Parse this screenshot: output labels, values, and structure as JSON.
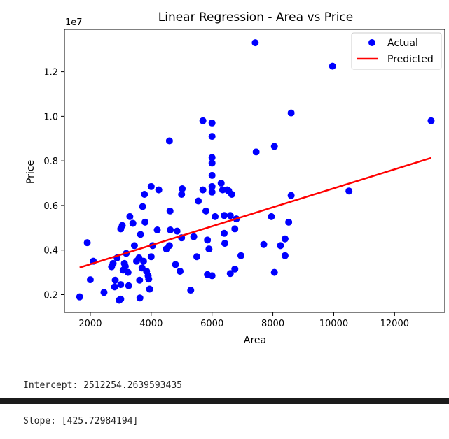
{
  "chart_data": {
    "type": "scatter",
    "title": "Linear Regression - Area vs Price",
    "xlabel": "Area",
    "ylabel": "Price",
    "y_offset_label": "1e7",
    "xlim": [
      1150,
      13650
    ],
    "ylim": [
      1200000,
      13900000
    ],
    "x_ticks": [
      2000,
      4000,
      6000,
      8000,
      10000,
      12000
    ],
    "x_tick_labels": [
      "2000",
      "4000",
      "6000",
      "8000",
      "10000",
      "12000"
    ],
    "y_ticks": [
      2000000,
      4000000,
      6000000,
      8000000,
      10000000,
      12000000
    ],
    "y_tick_labels": [
      "0.2",
      "0.4",
      "0.6",
      "0.8",
      "1.0",
      "1.2"
    ],
    "grid": false,
    "legend_position": "top-right",
    "series": [
      {
        "name": "Actual",
        "kind": "scatter",
        "color": "#0000ff",
        "points": [
          [
            1650,
            1900000
          ],
          [
            1900,
            4330000
          ],
          [
            2100,
            3500000
          ],
          [
            2000,
            2670000
          ],
          [
            2450,
            2100000
          ],
          [
            2700,
            3250000
          ],
          [
            2750,
            3400000
          ],
          [
            2800,
            2350000
          ],
          [
            2820,
            2650000
          ],
          [
            2880,
            3650000
          ],
          [
            2950,
            1750000
          ],
          [
            3000,
            1800000
          ],
          [
            3000,
            2450000
          ],
          [
            3000,
            4950000
          ],
          [
            3050,
            5100000
          ],
          [
            3080,
            3100000
          ],
          [
            3120,
            3400000
          ],
          [
            3150,
            3270000
          ],
          [
            3180,
            3850000
          ],
          [
            3240,
            3000000
          ],
          [
            3260,
            2400000
          ],
          [
            3300,
            5500000
          ],
          [
            3400,
            5200000
          ],
          [
            3450,
            4200000
          ],
          [
            3520,
            3500000
          ],
          [
            3600,
            3650000
          ],
          [
            3620,
            2650000
          ],
          [
            3630,
            1850000
          ],
          [
            3650,
            4700000
          ],
          [
            3700,
            3200000
          ],
          [
            3720,
            5950000
          ],
          [
            3750,
            3500000
          ],
          [
            3780,
            6500000
          ],
          [
            3800,
            5250000
          ],
          [
            3850,
            3050000
          ],
          [
            3900,
            2850000
          ],
          [
            3920,
            2700000
          ],
          [
            3950,
            2250000
          ],
          [
            4000,
            6850000
          ],
          [
            4000,
            3700000
          ],
          [
            4050,
            4200000
          ],
          [
            4200,
            4900000
          ],
          [
            4250,
            6700000
          ],
          [
            4500,
            4050000
          ],
          [
            4600,
            8900000
          ],
          [
            4600,
            4200000
          ],
          [
            4620,
            5750000
          ],
          [
            4630,
            4900000
          ],
          [
            4800,
            3350000
          ],
          [
            4850,
            4850000
          ],
          [
            4950,
            3050000
          ],
          [
            5000,
            6500000
          ],
          [
            5000,
            4550000
          ],
          [
            5020,
            6750000
          ],
          [
            5300,
            2200000
          ],
          [
            5400,
            4600000
          ],
          [
            5500,
            3700000
          ],
          [
            5550,
            6200000
          ],
          [
            5700,
            6700000
          ],
          [
            5700,
            9800000
          ],
          [
            5800,
            5750000
          ],
          [
            5850,
            4450000
          ],
          [
            5850,
            2900000
          ],
          [
            5900,
            4050000
          ],
          [
            6000,
            2850000
          ],
          [
            6000,
            9700000
          ],
          [
            6000,
            9100000
          ],
          [
            6000,
            8150000
          ],
          [
            6000,
            7900000
          ],
          [
            6000,
            7350000
          ],
          [
            6000,
            6850000
          ],
          [
            6000,
            6600000
          ],
          [
            6100,
            5500000
          ],
          [
            6300,
            7000000
          ],
          [
            6350,
            6700000
          ],
          [
            6400,
            5550000
          ],
          [
            6400,
            4750000
          ],
          [
            6420,
            4300000
          ],
          [
            6500,
            6700000
          ],
          [
            6550,
            6650000
          ],
          [
            6600,
            5550000
          ],
          [
            6650,
            6500000
          ],
          [
            6600,
            2950000
          ],
          [
            6750,
            3150000
          ],
          [
            6750,
            4950000
          ],
          [
            6800,
            5400000
          ],
          [
            6950,
            3750000
          ],
          [
            7420,
            13300000
          ],
          [
            7450,
            8400000
          ],
          [
            7700,
            4250000
          ],
          [
            7950,
            5500000
          ],
          [
            8050,
            3000000
          ],
          [
            8050,
            8650000
          ],
          [
            8250,
            4200000
          ],
          [
            8400,
            4500000
          ],
          [
            8400,
            3750000
          ],
          [
            8520,
            5250000
          ],
          [
            8600,
            10150000
          ],
          [
            8600,
            6450000
          ],
          [
            9960,
            12250000
          ],
          [
            10500,
            6650000
          ],
          [
            13200,
            9800000
          ]
        ]
      },
      {
        "name": "Predicted",
        "kind": "line",
        "color": "#ff0000",
        "intercept": 2512254.2639593435,
        "slope": 425.72984194,
        "x_range": [
          1650,
          13200
        ]
      }
    ]
  },
  "output": {
    "intercept_line": "Intercept: 2512254.2639593435",
    "slope_line": "Slope: [425.72984194]"
  }
}
